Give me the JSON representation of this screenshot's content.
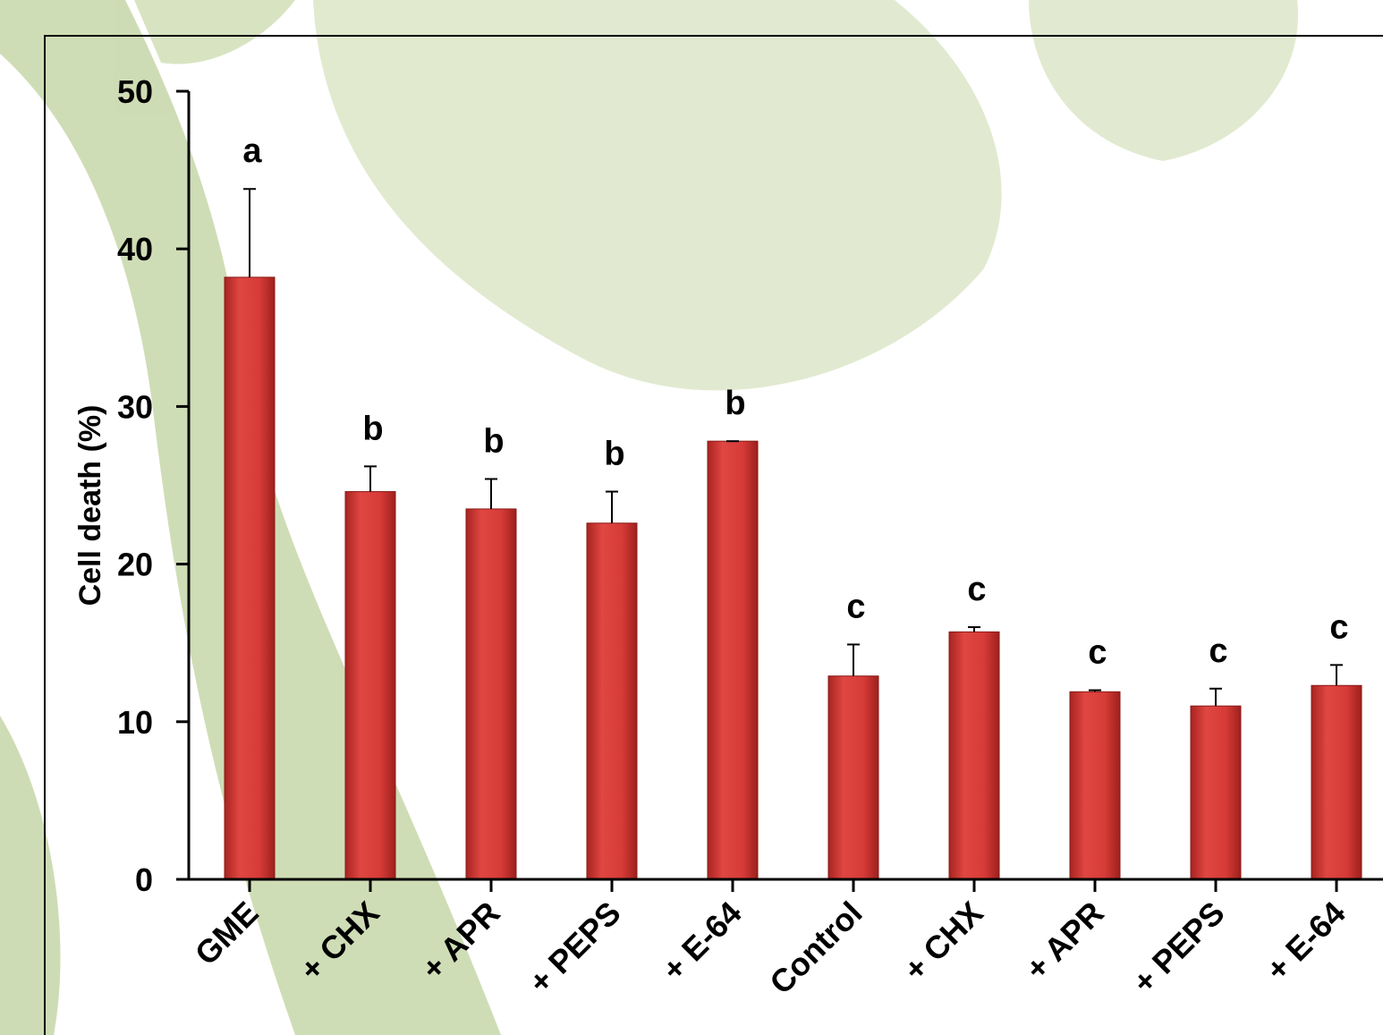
{
  "chart_data": {
    "type": "bar",
    "y_label": "Cell death (%)",
    "categories": [
      "GME",
      "+ CHX",
      "+ APR",
      "+ PEPS",
      "+ E-64",
      "Control",
      "+ CHX",
      "+ APR",
      "+ PEPS",
      "+ E-64"
    ],
    "values": [
      38.2,
      24.6,
      23.5,
      22.6,
      27.8,
      12.9,
      15.7,
      11.9,
      11.0,
      12.3
    ],
    "errors": [
      5.6,
      1.6,
      1.9,
      2.0,
      0,
      2.0,
      0.3,
      0.1,
      1.1,
      1.3
    ],
    "annotations": [
      "a",
      "b",
      "b",
      "b",
      "b",
      "c",
      "c",
      "c",
      "c",
      "c"
    ],
    "color": "#d63b37",
    "ylim": [
      0,
      50
    ],
    "yticks": [
      0,
      10,
      20,
      30,
      40,
      50
    ]
  }
}
